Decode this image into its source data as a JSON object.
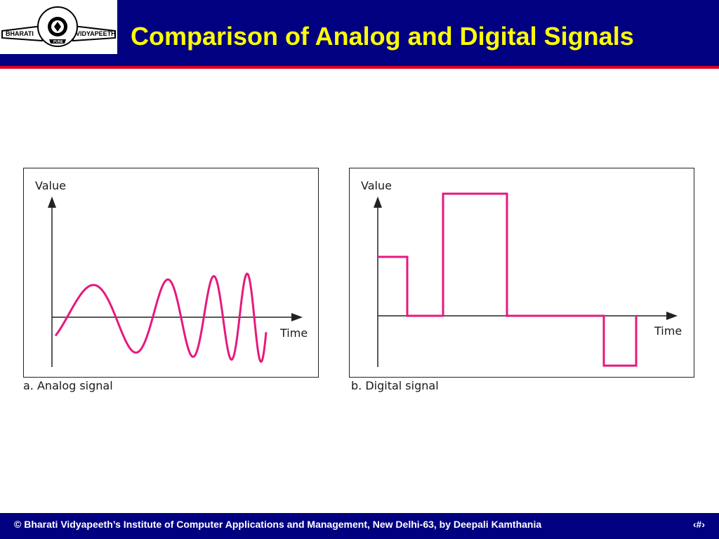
{
  "header": {
    "title": "Comparison of Analog and Digital Signals",
    "logo": {
      "left_text": "BHARATI",
      "right_text": "VIDYAPEETH",
      "ring_text": "BHARATI VIDYAPEETH",
      "city": "PUNE"
    }
  },
  "colors": {
    "header_bg": "#000080",
    "title": "#ffff00",
    "accent_rule": "#e0001b",
    "signal": "#e6197d"
  },
  "panels": {
    "analog": {
      "y_label": "Value",
      "x_label": "Time",
      "caption": "a. Analog signal"
    },
    "digital": {
      "y_label": "Value",
      "x_label": "Time",
      "caption": "b. Digital signal",
      "levels": [
        1,
        0,
        2,
        0,
        -1
      ]
    }
  },
  "footer": {
    "text": "© Bharati Vidyapeeth’s Institute of Computer Applications and Management, New Delhi-63, by Deepali Kamthania",
    "page_number": "‹#›"
  }
}
